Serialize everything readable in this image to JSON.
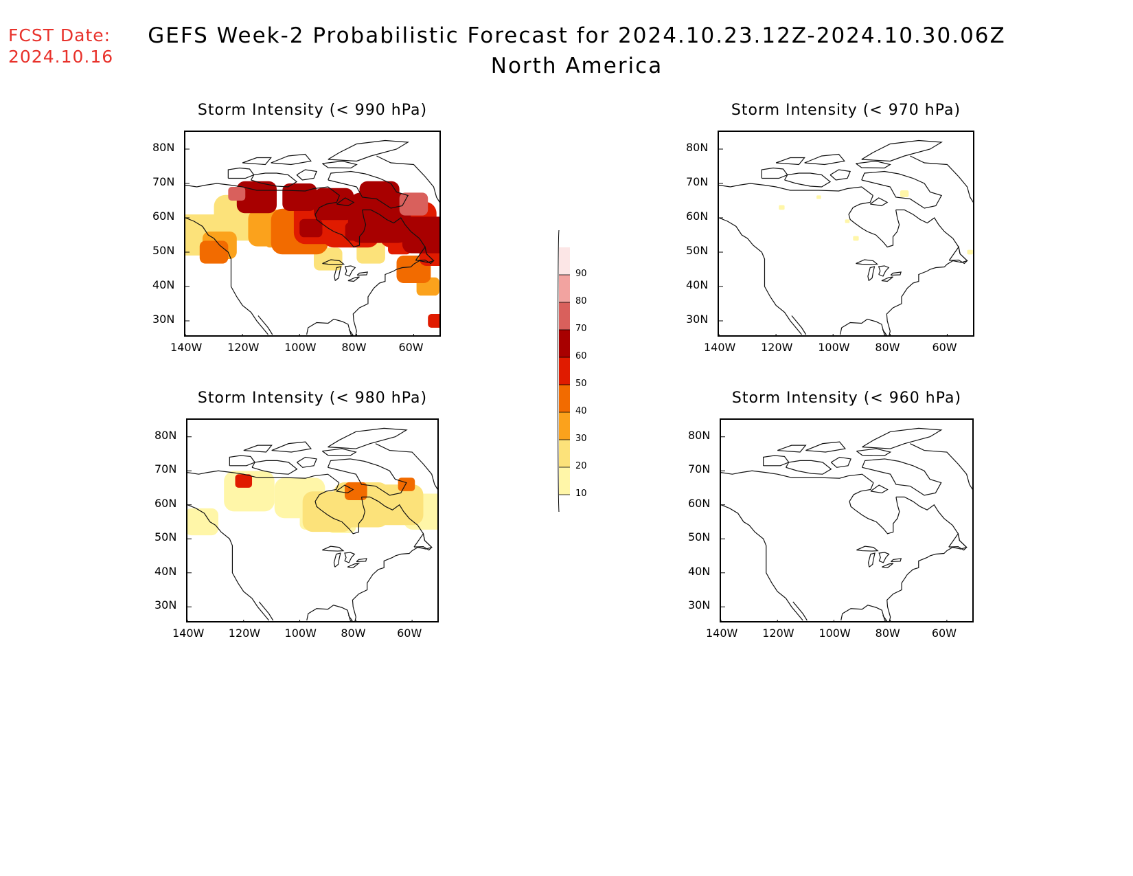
{
  "header": {
    "fcst_label": "FCST Date:",
    "fcst_date": "2024.10.16",
    "title": "GEFS Week-2 Probabilistic Forecast for 2024.10.23.12Z-2024.10.30.06Z",
    "region": "North America"
  },
  "panels": [
    {
      "id": "p990",
      "title": "Storm Intensity (< 990 hPa)"
    },
    {
      "id": "p970",
      "title": "Storm Intensity (< 970 hPa)"
    },
    {
      "id": "p980",
      "title": "Storm Intensity (< 980 hPa)"
    },
    {
      "id": "p960",
      "title": "Storm Intensity (< 960 hPa)"
    }
  ],
  "axes": {
    "lon_labels": [
      "140W",
      "120W",
      "100W",
      "80W",
      "60W"
    ],
    "lat_labels": [
      "80N",
      "70N",
      "60N",
      "50N",
      "40N",
      "30N"
    ],
    "lon_range": [
      -140,
      -50
    ],
    "lat_range": [
      25,
      85
    ]
  },
  "colorbar": {
    "levels": [
      "10",
      "20",
      "30",
      "40",
      "50",
      "60",
      "70",
      "80",
      "90"
    ],
    "colors": [
      "#fff6a8",
      "#fce27a",
      "#fba21c",
      "#f26b00",
      "#e01b00",
      "#a80000",
      "#d9605c",
      "#f2a3a0",
      "#fce6e6"
    ]
  }
}
